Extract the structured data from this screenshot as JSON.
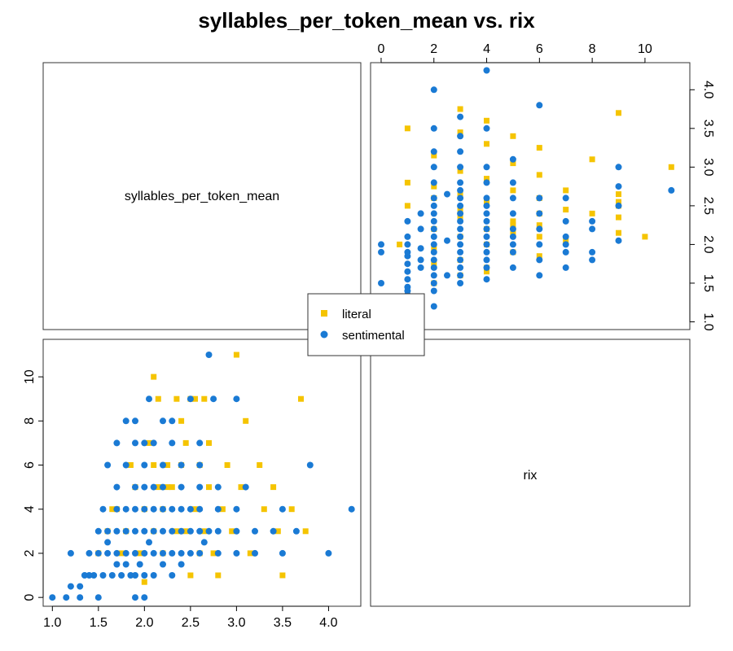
{
  "chart_data": {
    "type": "scatter",
    "title": "syllables_per_token_mean vs. rix",
    "variables": [
      "syllables_per_token_mean",
      "rix"
    ],
    "colors": {
      "literal": "#F5C400",
      "sentimental": "#1A7AD4"
    },
    "legend": {
      "position": "center",
      "entries": [
        {
          "name": "literal",
          "marker": "square",
          "color": "#F5C400"
        },
        {
          "name": "sentimental",
          "marker": "circle",
          "color": "#1A7AD4"
        }
      ]
    },
    "axes": {
      "rix": {
        "range": [
          -0.4,
          11.7
        ],
        "ticks": [
          0,
          2,
          4,
          6,
          8,
          10
        ]
      },
      "syllables_per_token_mean": {
        "range": [
          0.9,
          4.35
        ],
        "ticks": [
          1.0,
          1.5,
          2.0,
          2.5,
          3.0,
          3.5,
          4.0
        ]
      }
    },
    "series": [
      {
        "name": "literal",
        "points": [
          [
            1.6,
            3
          ],
          [
            1.7,
            4
          ],
          [
            1.8,
            3
          ],
          [
            1.9,
            5
          ],
          [
            1.95,
            2
          ],
          [
            2.0,
            4
          ],
          [
            2.05,
            7
          ],
          [
            2.1,
            3
          ],
          [
            2.1,
            10
          ],
          [
            2.15,
            9
          ],
          [
            2.2,
            4
          ],
          [
            2.25,
            6
          ],
          [
            2.3,
            5
          ],
          [
            2.35,
            9
          ],
          [
            2.4,
            8
          ],
          [
            2.45,
            3
          ],
          [
            2.5,
            9
          ],
          [
            2.55,
            4
          ],
          [
            2.6,
            6
          ],
          [
            2.65,
            9
          ],
          [
            2.7,
            5
          ],
          [
            2.75,
            2
          ],
          [
            2.85,
            4
          ],
          [
            2.95,
            3
          ],
          [
            3.0,
            11
          ],
          [
            3.1,
            8
          ],
          [
            3.15,
            2
          ],
          [
            3.25,
            6
          ],
          [
            3.3,
            4
          ],
          [
            3.4,
            5
          ],
          [
            3.5,
            1
          ],
          [
            3.6,
            4
          ],
          [
            3.7,
            9
          ],
          [
            3.75,
            3
          ],
          [
            2.5,
            1
          ],
          [
            2.6,
            2
          ],
          [
            2.8,
            1
          ],
          [
            2.0,
            0.7
          ],
          [
            1.75,
            2
          ],
          [
            2.35,
            3
          ],
          [
            2.45,
            7
          ],
          [
            2.25,
            5
          ],
          [
            2.55,
            9
          ],
          [
            2.9,
            6
          ],
          [
            3.05,
            5
          ],
          [
            1.85,
            6
          ],
          [
            2.15,
            5
          ],
          [
            2.65,
            3
          ],
          [
            2.2,
            2
          ],
          [
            1.65,
            4
          ],
          [
            3.45,
            3
          ],
          [
            2.7,
            7
          ],
          [
            2.4,
            6
          ],
          [
            1.5,
            2
          ],
          [
            2.1,
            6
          ]
        ]
      },
      {
        "name": "sentimental",
        "points": [
          [
            1.0,
            0
          ],
          [
            1.15,
            0
          ],
          [
            1.3,
            0
          ],
          [
            1.5,
            0
          ],
          [
            1.9,
            0
          ],
          [
            2.0,
            0
          ],
          [
            1.2,
            0.5
          ],
          [
            1.3,
            0.5
          ],
          [
            1.35,
            1
          ],
          [
            1.45,
            1
          ],
          [
            1.55,
            1
          ],
          [
            1.65,
            1
          ],
          [
            1.75,
            1
          ],
          [
            1.85,
            1
          ],
          [
            1.9,
            1
          ],
          [
            2.0,
            1
          ],
          [
            2.1,
            1
          ],
          [
            2.3,
            1
          ],
          [
            1.7,
            1.5
          ],
          [
            1.8,
            1.5
          ],
          [
            1.95,
            1.5
          ],
          [
            2.2,
            1.5
          ],
          [
            2.4,
            1.5
          ],
          [
            1.2,
            2
          ],
          [
            1.4,
            2
          ],
          [
            1.5,
            2
          ],
          [
            1.6,
            2
          ],
          [
            1.7,
            2
          ],
          [
            1.8,
            2
          ],
          [
            1.9,
            2
          ],
          [
            2.0,
            2
          ],
          [
            2.1,
            2
          ],
          [
            2.2,
            2
          ],
          [
            2.3,
            2
          ],
          [
            2.4,
            2
          ],
          [
            2.5,
            2
          ],
          [
            2.6,
            2
          ],
          [
            2.8,
            2
          ],
          [
            3.0,
            2
          ],
          [
            3.2,
            2
          ],
          [
            3.5,
            2
          ],
          [
            4.0,
            2
          ],
          [
            1.5,
            3
          ],
          [
            1.6,
            3
          ],
          [
            1.7,
            3
          ],
          [
            1.8,
            3
          ],
          [
            1.9,
            3
          ],
          [
            2.0,
            3
          ],
          [
            2.1,
            3
          ],
          [
            2.2,
            3
          ],
          [
            2.3,
            3
          ],
          [
            2.4,
            3
          ],
          [
            2.5,
            3
          ],
          [
            2.6,
            3
          ],
          [
            2.7,
            3
          ],
          [
            2.8,
            3
          ],
          [
            3.0,
            3
          ],
          [
            3.2,
            3
          ],
          [
            3.4,
            3
          ],
          [
            3.65,
            3
          ],
          [
            1.55,
            4
          ],
          [
            1.7,
            4
          ],
          [
            1.8,
            4
          ],
          [
            1.9,
            4
          ],
          [
            2.0,
            4
          ],
          [
            2.1,
            4
          ],
          [
            2.2,
            4
          ],
          [
            2.3,
            4
          ],
          [
            2.4,
            4
          ],
          [
            2.5,
            4
          ],
          [
            2.6,
            4
          ],
          [
            2.8,
            4
          ],
          [
            3.0,
            4
          ],
          [
            3.5,
            4
          ],
          [
            4.25,
            4
          ],
          [
            1.7,
            5
          ],
          [
            1.9,
            5
          ],
          [
            2.0,
            5
          ],
          [
            2.1,
            5
          ],
          [
            2.2,
            5
          ],
          [
            2.4,
            5
          ],
          [
            2.6,
            5
          ],
          [
            2.8,
            5
          ],
          [
            3.1,
            5
          ],
          [
            1.6,
            6
          ],
          [
            1.8,
            6
          ],
          [
            2.0,
            6
          ],
          [
            2.2,
            6
          ],
          [
            2.4,
            6
          ],
          [
            2.6,
            6
          ],
          [
            3.8,
            6
          ],
          [
            1.7,
            7
          ],
          [
            1.9,
            7
          ],
          [
            2.0,
            7
          ],
          [
            2.1,
            7
          ],
          [
            2.3,
            7
          ],
          [
            2.6,
            7
          ],
          [
            1.8,
            8
          ],
          [
            1.9,
            8
          ],
          [
            2.2,
            8
          ],
          [
            2.3,
            8
          ],
          [
            2.05,
            9
          ],
          [
            2.5,
            9
          ],
          [
            2.75,
            9
          ],
          [
            3.0,
            9
          ],
          [
            2.7,
            11
          ],
          [
            1.4,
            1
          ],
          [
            1.6,
            2.5
          ],
          [
            2.65,
            2.5
          ],
          [
            2.05,
            2.5
          ]
        ]
      }
    ]
  }
}
